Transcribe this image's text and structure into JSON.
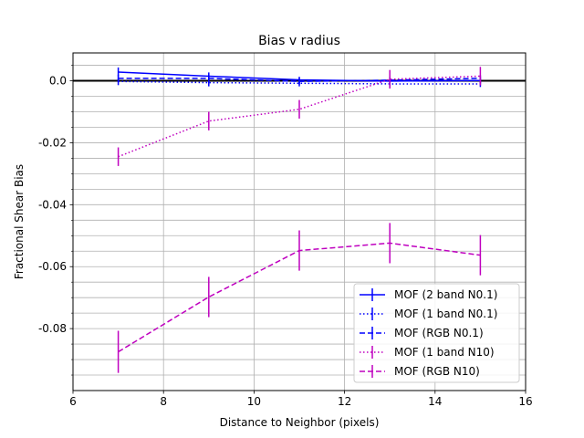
{
  "chart_data": {
    "type": "line",
    "title": "Bias v radius",
    "xlabel": "Distance to Neighbor (pixels)",
    "ylabel": "Fractional Shear Bias",
    "xlim": [
      6,
      16
    ],
    "ylim": [
      -0.1,
      0.009
    ],
    "xticks": [
      6,
      8,
      10,
      12,
      14,
      16
    ],
    "xtick_labels": [
      "6",
      "8",
      "10",
      "12",
      "14",
      "16"
    ],
    "yticks": [
      0.0,
      -0.02,
      -0.04,
      -0.06,
      -0.08
    ],
    "ytick_labels": [
      "0.0",
      "-0.02",
      "-0.04",
      "-0.06",
      "-0.08"
    ],
    "grid": true,
    "grid_minor_y": true,
    "reference_line_y": 0,
    "legend_position": "lower-right",
    "x": [
      7,
      9,
      11,
      13,
      15
    ],
    "series": [
      {
        "name": "MOF (2 band N0.1)",
        "color": "#0000ff",
        "style": "solid",
        "values": [
          0.0028,
          0.0015,
          0.0003,
          -0.0001,
          0.0001
        ],
        "errors": [
          0.0015,
          0.0012,
          0.001,
          0.001,
          0.001
        ]
      },
      {
        "name": "MOF (1 band N0.1)",
        "color": "#0000ff",
        "style": "dotted",
        "values": [
          -0.0002,
          -0.0006,
          -0.0008,
          -0.001,
          -0.001
        ],
        "errors": [
          0.0012,
          0.0012,
          0.001,
          0.001,
          0.001
        ]
      },
      {
        "name": "MOF (RGB N0.1)",
        "color": "#0000ff",
        "style": "dashed",
        "values": [
          0.0008,
          0.0008,
          -0.0002,
          0.0002,
          0.0008
        ],
        "errors": [
          0.0012,
          0.0012,
          0.001,
          0.001,
          0.001
        ]
      },
      {
        "name": "MOF (1 band N10)",
        "color": "#bf00bf",
        "style": "dotted",
        "values": [
          -0.0245,
          -0.013,
          -0.0092,
          0.0005,
          0.0015
        ],
        "errors": [
          0.003,
          0.003,
          0.003,
          0.003,
          0.003
        ]
      },
      {
        "name": "MOF (RGB N10)",
        "color": "#bf00bf",
        "style": "dashed",
        "values": [
          -0.0875,
          -0.0698,
          -0.0548,
          -0.0524,
          -0.0563
        ],
        "errors": [
          0.0068,
          0.0065,
          0.0065,
          0.0065,
          0.0065
        ]
      }
    ]
  }
}
